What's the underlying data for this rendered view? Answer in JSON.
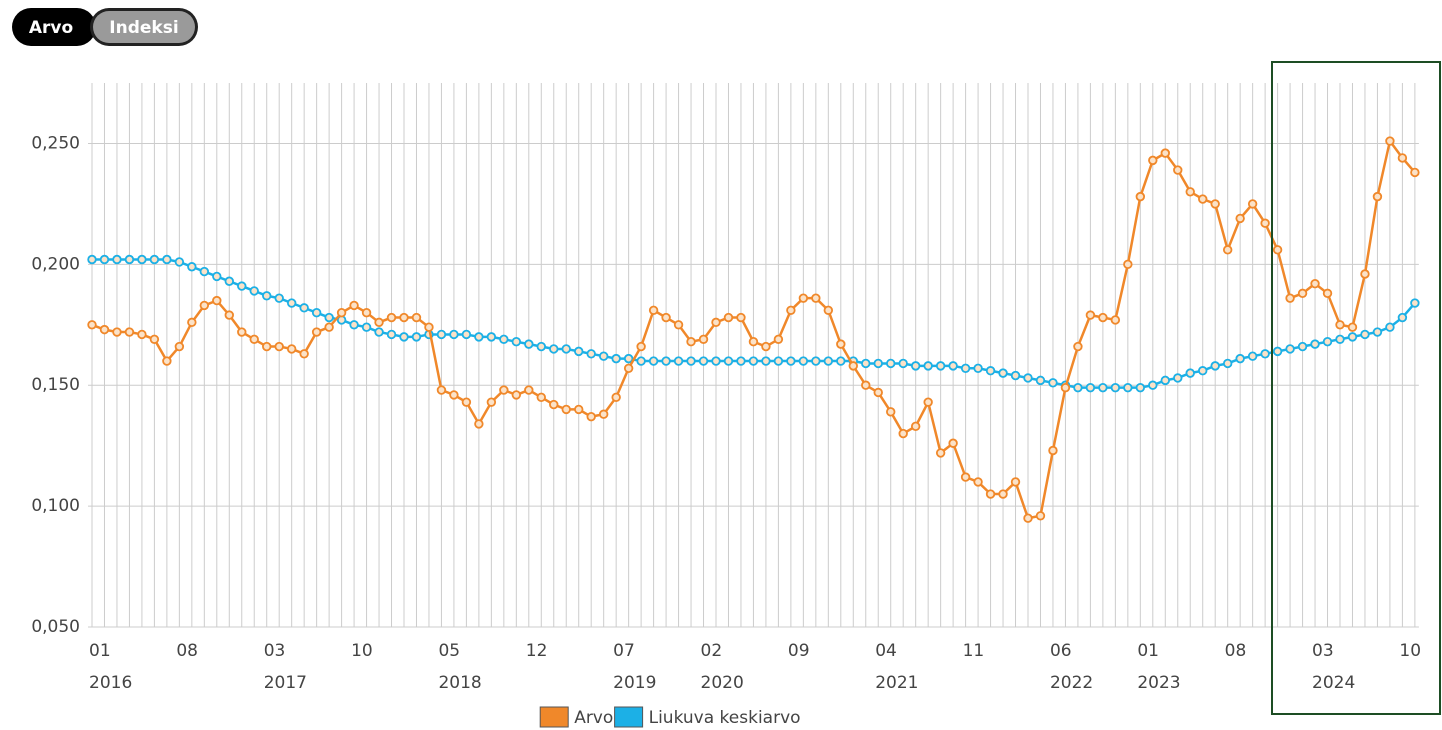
{
  "buttons": [
    "Arvo",
    "Indeksi"
  ],
  "chart_data": {
    "type": "line",
    "categories": [
      "01",
      null,
      null,
      null,
      null,
      null,
      null,
      "08",
      null,
      null,
      null,
      null,
      null,
      null,
      "03",
      null,
      null,
      null,
      null,
      null,
      null,
      "10",
      null,
      null,
      null,
      null,
      null,
      null,
      "05",
      null,
      null,
      null,
      null,
      null,
      null,
      "12",
      null,
      null,
      null,
      null,
      null,
      null,
      "07",
      null,
      null,
      null,
      null,
      null,
      null,
      "02",
      null,
      null,
      null,
      null,
      null,
      null,
      "09",
      null,
      null,
      null,
      null,
      null,
      null,
      "04",
      null,
      null,
      null,
      null,
      null,
      null,
      "11",
      null,
      null,
      null,
      null,
      null,
      null,
      "06",
      null,
      null,
      null,
      null,
      null,
      null,
      "01",
      null,
      null,
      null,
      null,
      null,
      null,
      "08",
      null,
      null,
      null,
      null,
      null,
      null,
      "03",
      null,
      null,
      null,
      null,
      null,
      null,
      "10",
      null
    ],
    "years": [
      "2016",
      null,
      null,
      null,
      null,
      null,
      null,
      null,
      null,
      null,
      null,
      null,
      null,
      null,
      "2017",
      null,
      null,
      null,
      null,
      null,
      null,
      null,
      null,
      null,
      null,
      null,
      null,
      null,
      "2018",
      null,
      null,
      null,
      null,
      null,
      null,
      null,
      null,
      null,
      null,
      null,
      null,
      null,
      "2019",
      null,
      null,
      null,
      null,
      null,
      null,
      "2020",
      null,
      null,
      null,
      null,
      null,
      null,
      null,
      null,
      null,
      null,
      null,
      null,
      null,
      "2021",
      null,
      null,
      null,
      null,
      null,
      null,
      null,
      null,
      null,
      null,
      null,
      null,
      null,
      "2022",
      null,
      null,
      null,
      null,
      null,
      null,
      "2023",
      null,
      null,
      null,
      null,
      null,
      null,
      null,
      null,
      null,
      null,
      null,
      null,
      null,
      "2024",
      null,
      null,
      null,
      null,
      null,
      null,
      null,
      null
    ],
    "series": [
      {
        "name": "Arvo",
        "color": "#f0882a",
        "values": [
          0.175,
          0.173,
          0.172,
          0.172,
          0.171,
          0.169,
          0.16,
          0.166,
          0.176,
          0.183,
          0.185,
          0.179,
          0.172,
          0.169,
          0.166,
          0.166,
          0.165,
          0.163,
          0.172,
          0.174,
          0.18,
          0.183,
          0.18,
          0.176,
          0.178,
          0.178,
          0.178,
          0.174,
          0.148,
          0.146,
          0.143,
          0.134,
          0.143,
          0.148,
          0.146,
          0.148,
          0.145,
          0.142,
          0.14,
          0.14,
          0.137,
          0.138,
          0.145,
          0.157,
          0.166,
          0.181,
          0.178,
          0.175,
          0.168,
          0.169,
          0.176,
          0.178,
          0.178,
          0.168,
          0.166,
          0.169,
          0.181,
          0.186,
          0.186,
          0.181,
          0.167,
          0.158,
          0.15,
          0.147,
          0.139,
          0.13,
          0.133,
          0.143,
          0.122,
          0.126,
          0.112,
          0.11,
          0.105,
          0.105,
          0.11,
          0.095,
          0.096,
          0.123,
          0.149,
          0.166,
          0.179,
          0.178,
          0.177,
          0.2,
          0.228,
          0.243,
          0.246,
          0.239,
          0.23,
          0.227,
          0.225,
          0.206,
          0.219,
          0.225,
          0.217,
          0.206,
          0.186,
          0.188,
          0.192,
          0.188,
          0.175,
          0.174,
          0.196,
          0.228,
          0.251,
          0.244,
          0.238
        ]
      },
      {
        "name": "Liukuva keskiarvo",
        "color": "#1cb0e6",
        "values": [
          0.202,
          0.202,
          0.202,
          0.202,
          0.202,
          0.202,
          0.202,
          0.201,
          0.199,
          0.197,
          0.195,
          0.193,
          0.191,
          0.189,
          0.187,
          0.186,
          0.184,
          0.182,
          0.18,
          0.178,
          0.177,
          0.175,
          0.174,
          0.172,
          0.171,
          0.17,
          0.17,
          0.171,
          0.171,
          0.171,
          0.171,
          0.17,
          0.17,
          0.169,
          0.168,
          0.167,
          0.166,
          0.165,
          0.165,
          0.164,
          0.163,
          0.162,
          0.161,
          0.161,
          0.16,
          0.16,
          0.16,
          0.16,
          0.16,
          0.16,
          0.16,
          0.16,
          0.16,
          0.16,
          0.16,
          0.16,
          0.16,
          0.16,
          0.16,
          0.16,
          0.16,
          0.16,
          0.159,
          0.159,
          0.159,
          0.159,
          0.158,
          0.158,
          0.158,
          0.158,
          0.157,
          0.157,
          0.156,
          0.155,
          0.154,
          0.153,
          0.152,
          0.151,
          0.15,
          0.149,
          0.149,
          0.149,
          0.149,
          0.149,
          0.149,
          0.15,
          0.152,
          0.153,
          0.155,
          0.156,
          0.158,
          0.159,
          0.161,
          0.162,
          0.163,
          0.164,
          0.165,
          0.166,
          0.167,
          0.168,
          0.169,
          0.17,
          0.171,
          0.172,
          0.174,
          0.178,
          0.184
        ]
      }
    ],
    "ylim": [
      0.05,
      0.275
    ],
    "yticks": [
      {
        "value": 0.05,
        "label": "0,050"
      },
      {
        "value": 0.1,
        "label": "0,100"
      },
      {
        "value": 0.15,
        "label": "0,150"
      },
      {
        "value": 0.2,
        "label": "0,200"
      },
      {
        "value": 0.25,
        "label": "0,250"
      }
    ],
    "grid": true,
    "legend": "bottom"
  }
}
